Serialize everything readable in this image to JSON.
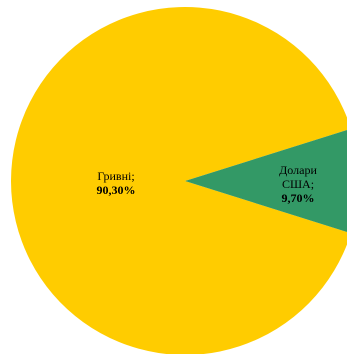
{
  "chart_data": {
    "type": "pie",
    "title": "",
    "slices": [
      {
        "label_lines": [
          "Гривні;"
        ],
        "value": 90.3,
        "value_label": "90,30%",
        "color": "#FFCC00"
      },
      {
        "label_lines": [
          "Долари",
          "США;"
        ],
        "value": 9.7,
        "value_label": "9,70%",
        "color": "#339966"
      }
    ],
    "legend": "none"
  }
}
